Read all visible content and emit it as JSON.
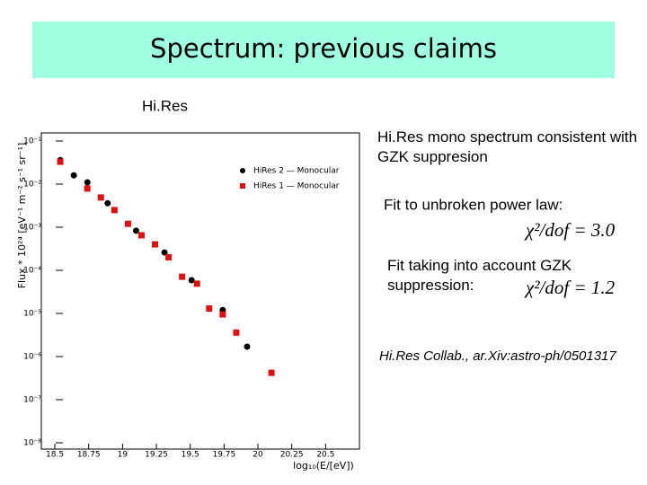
{
  "slide": {
    "title": "Spectrum: previous claims",
    "heading": "Hi.Res",
    "notes": [
      "Hi.Res mono spectrum consistent with GZK suppresion",
      "Fit to unbroken power law:",
      "Fit taking into account GZK suppression:"
    ],
    "formulas": [
      "χ²/dof = 3.0",
      "χ²/dof = 1.2"
    ],
    "citation": "Hi.Res Collab., ar.Xiv:astro-ph/0501317"
  },
  "chart_data": {
    "type": "scatter",
    "log_y": true,
    "x_label": "log₁₀(E/[eV])",
    "y_label": "Flux * 10²⁴ [eV⁻¹ m⁻² s⁻¹ sr⁻¹]",
    "xlim": [
      18.4,
      20.75
    ],
    "xticks": [
      18.5,
      18.75,
      19,
      19.25,
      19.5,
      19.75,
      20,
      20.25,
      20.5
    ],
    "ylim": [
      1e-08,
      0.1
    ],
    "yticks": [
      {
        "value": 1e-08,
        "label": "10⁻⁸"
      },
      {
        "value": 1e-07,
        "label": "10⁻⁷"
      },
      {
        "value": 1e-06,
        "label": "10⁻⁶"
      },
      {
        "value": 1e-05,
        "label": "10⁻⁵"
      },
      {
        "value": 0.0001,
        "label": "10⁻⁴"
      },
      {
        "value": 0.001,
        "label": "10⁻³"
      },
      {
        "value": 0.01,
        "label": "10⁻²"
      },
      {
        "value": 0.1,
        "label": "10⁻¹"
      }
    ],
    "legend": "upper right",
    "series": [
      {
        "name": "HiRes 2 — Monocular",
        "color": "#000000",
        "marker": "circle",
        "x": [
          18.54,
          18.64,
          18.74,
          18.89,
          19.1,
          19.31,
          19.51,
          19.74,
          19.92
        ],
        "values": [
          0.036,
          0.016,
          0.011,
          0.0036,
          0.00083,
          0.00026,
          5.9e-05,
          1.2e-05,
          1.7e-06
        ]
      },
      {
        "name": "HiRes 1 — Monocular",
        "color": "#dd1111",
        "marker": "square",
        "x": [
          18.54,
          18.74,
          18.84,
          18.94,
          19.04,
          19.14,
          19.24,
          19.34,
          19.44,
          19.55,
          19.64,
          19.74,
          19.84,
          20.1
        ],
        "values": [
          0.033,
          0.0079,
          0.0049,
          0.0025,
          0.0012,
          0.00065,
          0.0004,
          0.0002,
          7.1e-05,
          4.9e-05,
          1.3e-05,
          9.5e-06,
          3.6e-06,
          4.2e-07
        ]
      }
    ]
  }
}
